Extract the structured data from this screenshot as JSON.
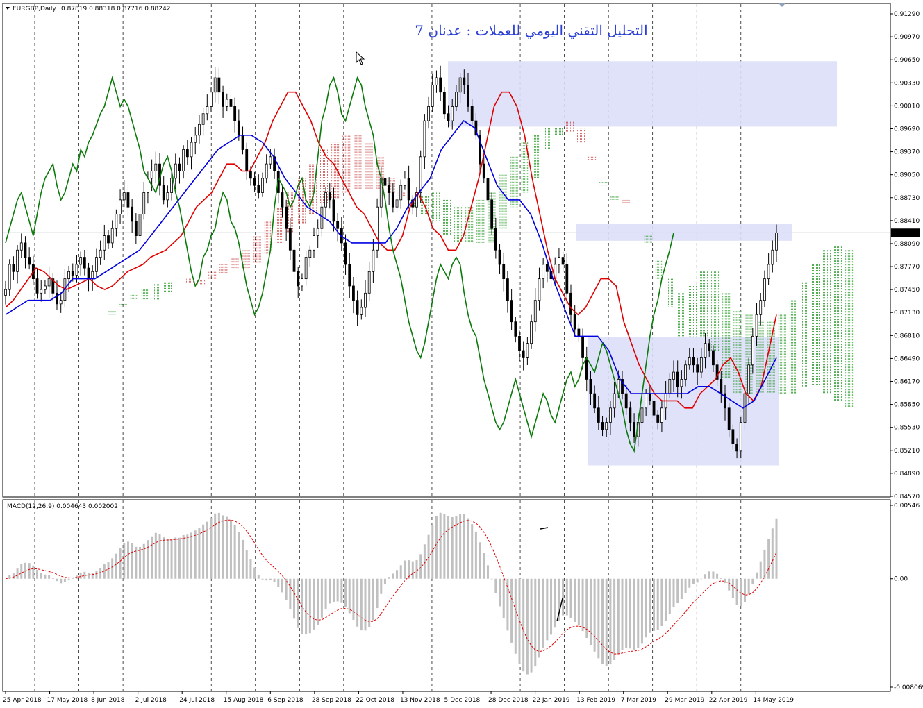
{
  "header": {
    "symbol": "EURGBP,Daily",
    "ohlc": "0.87819 0.88318 0.87716 0.88242"
  },
  "title": "التحليل التقني اليومي للعملات : عدنان 7",
  "macd_label": "MACD(12,26,9) 0.004643 0.002002",
  "price_label": "0.88242",
  "colors": {
    "bull_candle": "#000000",
    "tenkan": "#e00000",
    "kijun": "#0000e0",
    "chikou": "#0a7a0a",
    "cloud_bull": "#0a8a0a",
    "cloud_bear": "#c03030",
    "zone": "#dcdff7",
    "macd_hist": "#c0c0c0",
    "macd_signal": "#e00000"
  },
  "chart_data": {
    "type": "candlestick",
    "symbol": "EURGBP",
    "timeframe": "Daily",
    "price_ticks": [
      "0.91290",
      "0.90970",
      "0.90650",
      "0.90330",
      "0.90010",
      "0.89690",
      "0.89370",
      "0.89050",
      "0.88730",
      "0.88410",
      "0.88090",
      "0.87770",
      "0.87450",
      "0.87130",
      "0.86810",
      "0.86490",
      "0.86170",
      "0.85850",
      "0.85530",
      "0.85210",
      "0.84890",
      "0.84570"
    ],
    "price_range": [
      0.8457,
      0.9129
    ],
    "date_ticks": [
      "25 Apr 2018",
      "17 May 2018",
      "8 Jun 2018",
      "2 Jul 2018",
      "24 Jul 2018",
      "15 Aug 2018",
      "6 Sep 2018",
      "28 Sep 2018",
      "22 Oct 2018",
      "13 Nov 2018",
      "5 Dec 2018",
      "28 Dec 2018",
      "22 Jan 2019",
      "13 Feb 2019",
      "7 Mar 2019",
      "29 Mar 2019",
      "22 Apr 2019",
      "14 May 2019"
    ],
    "macd_ticks": [
      "0.00546",
      "0.00",
      "-0.008069"
    ],
    "macd_range": [
      -0.008069,
      0.00546
    ],
    "last_price": 0.88242,
    "zones": [
      {
        "from": "5 Dec 2018",
        "to": "beyond 14 May 2019",
        "low": 0.8972,
        "high": 0.9063
      },
      {
        "from": "13 Feb 2019",
        "to": "14 May 2019",
        "low": 0.8813,
        "high": 0.8836
      },
      {
        "from": "13 Feb 2019",
        "to": "14 May 2019",
        "low": 0.85,
        "high": 0.8679
      }
    ],
    "closes": [
      0.8745,
      0.878,
      0.877,
      0.88,
      0.881,
      0.879,
      0.878,
      0.876,
      0.874,
      0.8745,
      0.875,
      0.876,
      0.874,
      0.8725,
      0.873,
      0.876,
      0.877,
      0.8765,
      0.878,
      0.879,
      0.8775,
      0.876,
      0.877,
      0.879,
      0.88,
      0.882,
      0.881,
      0.883,
      0.885,
      0.887,
      0.888,
      0.886,
      0.884,
      0.882,
      0.885,
      0.888,
      0.89,
      0.891,
      0.892,
      0.889,
      0.887,
      0.888,
      0.89,
      0.892,
      0.891,
      0.894,
      0.893,
      0.895,
      0.896,
      0.8975,
      0.899,
      0.9,
      0.902,
      0.904,
      0.902,
      0.9,
      0.901,
      0.9,
      0.898,
      0.896,
      0.894,
      0.891,
      0.89,
      0.889,
      0.888,
      0.89,
      0.892,
      0.893,
      0.891,
      0.888,
      0.886,
      0.883,
      0.88,
      0.877,
      0.875,
      0.876,
      0.879,
      0.88,
      0.882,
      0.883,
      0.886,
      0.888,
      0.887,
      0.884,
      0.883,
      0.881,
      0.878,
      0.875,
      0.873,
      0.871,
      0.872,
      0.874,
      0.877,
      0.88,
      0.886,
      0.89,
      0.889,
      0.888,
      0.886,
      0.887,
      0.889,
      0.89,
      0.887,
      0.886,
      0.888,
      0.893,
      0.898,
      0.9,
      0.903,
      0.904,
      0.902,
      0.899,
      0.898,
      0.9,
      0.902,
      0.904,
      0.903,
      0.9,
      0.898,
      0.896,
      0.892,
      0.89,
      0.887,
      0.883,
      0.88,
      0.878,
      0.876,
      0.873,
      0.87,
      0.868,
      0.866,
      0.865,
      0.867,
      0.87,
      0.873,
      0.876,
      0.878,
      0.877,
      0.876,
      0.878,
      0.879,
      0.878,
      0.874,
      0.871,
      0.869,
      0.868,
      0.865,
      0.862,
      0.86,
      0.858,
      0.856,
      0.855,
      0.856,
      0.858,
      0.86,
      0.862,
      0.86,
      0.858,
      0.856,
      0.854,
      0.856,
      0.858,
      0.86,
      0.859,
      0.857,
      0.856,
      0.858,
      0.86,
      0.862,
      0.863,
      0.861,
      0.862,
      0.864,
      0.865,
      0.864,
      0.863,
      0.865,
      0.867,
      0.866,
      0.864,
      0.862,
      0.86,
      0.858,
      0.855,
      0.853,
      0.852,
      0.856,
      0.86,
      0.864,
      0.868,
      0.871,
      0.873,
      0.876,
      0.878,
      0.88,
      0.8824
    ],
    "tenkan": [
      0.872,
      0.873,
      0.8745,
      0.876,
      0.8775,
      0.877,
      0.876,
      0.875,
      0.8745,
      0.875,
      0.8755,
      0.876,
      0.875,
      0.8745,
      0.875,
      0.876,
      0.877,
      0.8775,
      0.878,
      0.879,
      0.8795,
      0.88,
      0.881,
      0.882,
      0.884,
      0.886,
      0.887,
      0.888,
      0.89,
      0.892,
      0.892,
      0.891,
      0.891,
      0.893,
      0.895,
      0.898,
      0.9,
      0.902,
      0.902,
      0.9,
      0.898,
      0.895,
      0.893,
      0.892,
      0.89,
      0.888,
      0.886,
      0.885,
      0.883,
      0.881,
      0.88,
      0.88,
      0.882,
      0.886,
      0.888,
      0.886,
      0.883,
      0.882,
      0.88,
      0.88,
      0.882,
      0.886,
      0.89,
      0.895,
      0.9,
      0.902,
      0.902,
      0.9,
      0.896,
      0.89,
      0.885,
      0.88,
      0.876,
      0.874,
      0.872,
      0.871,
      0.872,
      0.874,
      0.876,
      0.876,
      0.875,
      0.87,
      0.867,
      0.864,
      0.862,
      0.86,
      0.859,
      0.859,
      0.859,
      0.858,
      0.858,
      0.86,
      0.861,
      0.862,
      0.864,
      0.865,
      0.863,
      0.86,
      0.859,
      0.861,
      0.866,
      0.871
    ],
    "kijun": [
      0.871,
      0.872,
      0.873,
      0.873,
      0.873,
      0.874,
      0.876,
      0.876,
      0.876,
      0.877,
      0.878,
      0.879,
      0.88,
      0.882,
      0.884,
      0.886,
      0.888,
      0.89,
      0.892,
      0.894,
      0.895,
      0.896,
      0.896,
      0.895,
      0.893,
      0.89,
      0.888,
      0.886,
      0.885,
      0.884,
      0.882,
      0.881,
      0.881,
      0.881,
      0.881,
      0.883,
      0.886,
      0.888,
      0.89,
      0.894,
      0.896,
      0.898,
      0.897,
      0.893,
      0.889,
      0.887,
      0.887,
      0.885,
      0.881,
      0.876,
      0.872,
      0.868,
      0.868,
      0.868,
      0.866,
      0.862,
      0.86,
      0.86,
      0.86,
      0.86,
      0.86,
      0.86,
      0.861,
      0.861,
      0.86,
      0.859,
      0.858,
      0.859,
      0.862,
      0.865
    ]
  }
}
